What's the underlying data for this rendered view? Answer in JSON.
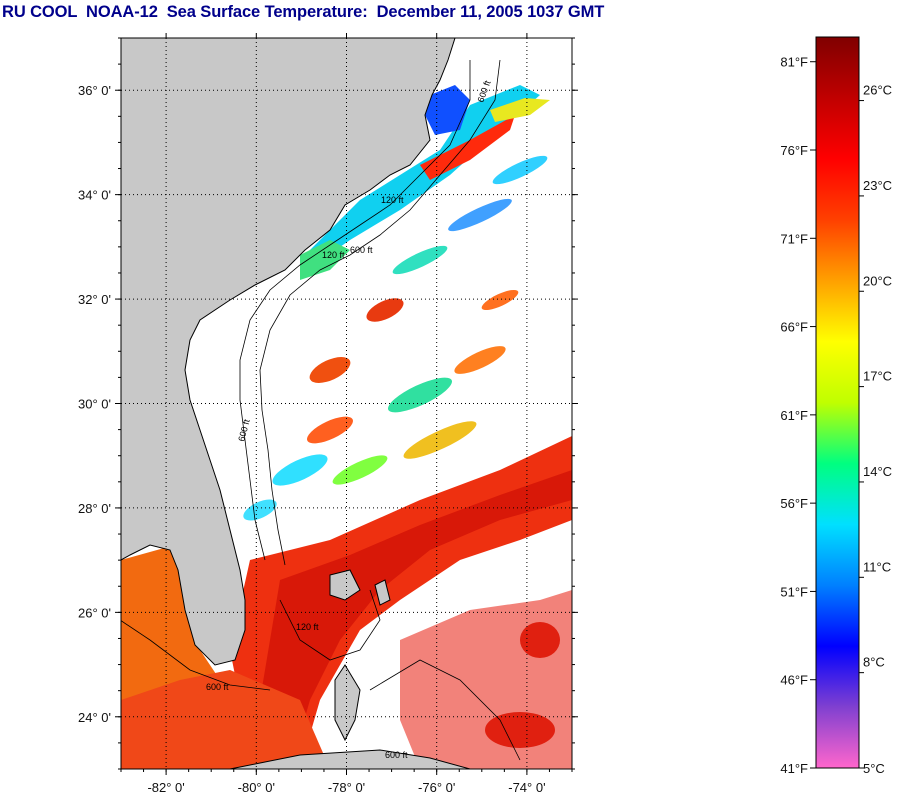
{
  "title": "RU COOL  NOAA-12  Sea Surface Temperature:  December 11, 2005 1037 GMT",
  "map": {
    "lon_range": [
      -83,
      -73
    ],
    "lat_range": [
      23,
      37
    ],
    "lon_ticks": [
      -82,
      -80,
      -78,
      -76,
      -74
    ],
    "lat_ticks": [
      24,
      26,
      28,
      30,
      32,
      34,
      36
    ],
    "lon_labels": [
      "-82° 0'",
      "-80° 0'",
      "-78° 0'",
      "-76° 0'",
      "-74° 0'"
    ],
    "lat_labels": [
      "24° 0'",
      "26° 0'",
      "28° 0'",
      "30° 0'",
      "32° 0'",
      "34° 0'",
      "36° 0'"
    ],
    "grid": "dotted",
    "land_color": "#c8c8c8",
    "cloud_color": "#ffffff",
    "contour_labels": [
      "600 ft",
      "120 ft",
      "120 ft",
      "600 ft",
      "600 ft",
      "120 ft",
      "600 ft",
      "600 ft"
    ]
  },
  "colorbar": {
    "min_c": 5,
    "max_c": 28,
    "fahrenheit_labels": [
      "81°F",
      "76°F",
      "71°F",
      "66°F",
      "61°F",
      "56°F",
      "51°F",
      "46°F",
      "41°F"
    ],
    "fahrenheit_values": [
      81,
      76,
      71,
      66,
      61,
      56,
      51,
      46,
      41
    ],
    "celsius_labels": [
      "26°C",
      "23°C",
      "20°C",
      "17°C",
      "14°C",
      "11°C",
      "8°C",
      "5°C"
    ],
    "celsius_values": [
      26,
      23,
      20,
      17,
      14,
      11,
      8,
      5
    ],
    "colors": [
      "#ff66cc",
      "#8040d0",
      "#0000ff",
      "#0080ff",
      "#00e0ff",
      "#00ff80",
      "#c0ff00",
      "#ffff00",
      "#ffa000",
      "#ff4000",
      "#ff0000",
      "#c00000",
      "#800000"
    ]
  }
}
